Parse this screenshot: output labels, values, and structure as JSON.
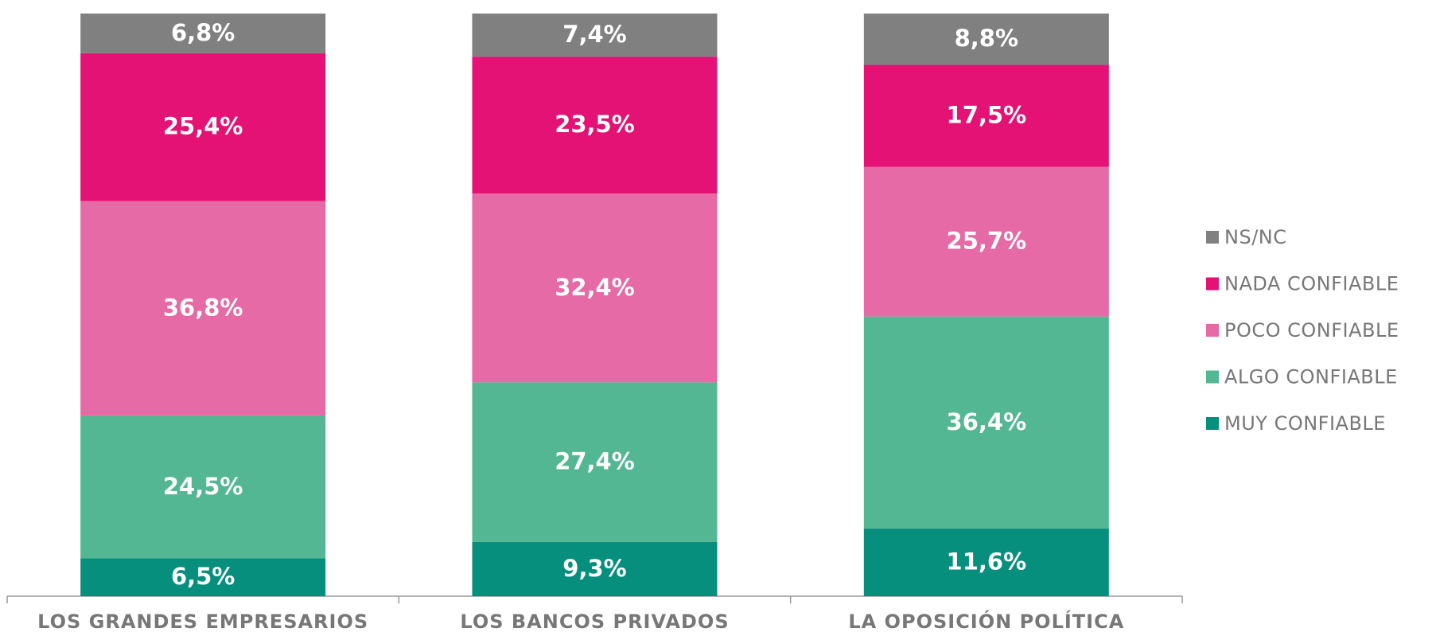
{
  "chart_data": {
    "type": "stacked_bar",
    "categories": [
      "LOS GRANDES EMPRESARIOS",
      "LOS BANCOS PRIVADOS",
      "LA OPOSICIÓN POLÍTICA"
    ],
    "series": [
      {
        "name": "MUY CONFIABLE",
        "color": "#078f7d",
        "values": [
          6.5,
          9.3,
          11.6
        ],
        "value_labels": [
          "6,5%",
          "9,3%",
          "11,6%"
        ]
      },
      {
        "name": "ALGO CONFIABLE",
        "color": "#52b792",
        "values": [
          24.5,
          27.4,
          36.4
        ],
        "value_labels": [
          "24,5%",
          "27,4%",
          "36,4%"
        ]
      },
      {
        "name": "POCO CONFIABLE",
        "color": "#e66aa5",
        "values": [
          36.8,
          32.4,
          25.7
        ],
        "value_labels": [
          "36,8%",
          "32,4%",
          "25,7%"
        ]
      },
      {
        "name": "NADA CONFIABLE",
        "color": "#e41275",
        "values": [
          25.4,
          23.5,
          17.5
        ],
        "value_labels": [
          "25,4%",
          "23,5%",
          "17,5%"
        ]
      },
      {
        "name": "NS/NC",
        "color": "#808080",
        "values": [
          6.8,
          7.4,
          8.8
        ],
        "value_labels": [
          "6,8%",
          "7,4%",
          "8,8%"
        ]
      }
    ],
    "legend": "right"
  }
}
